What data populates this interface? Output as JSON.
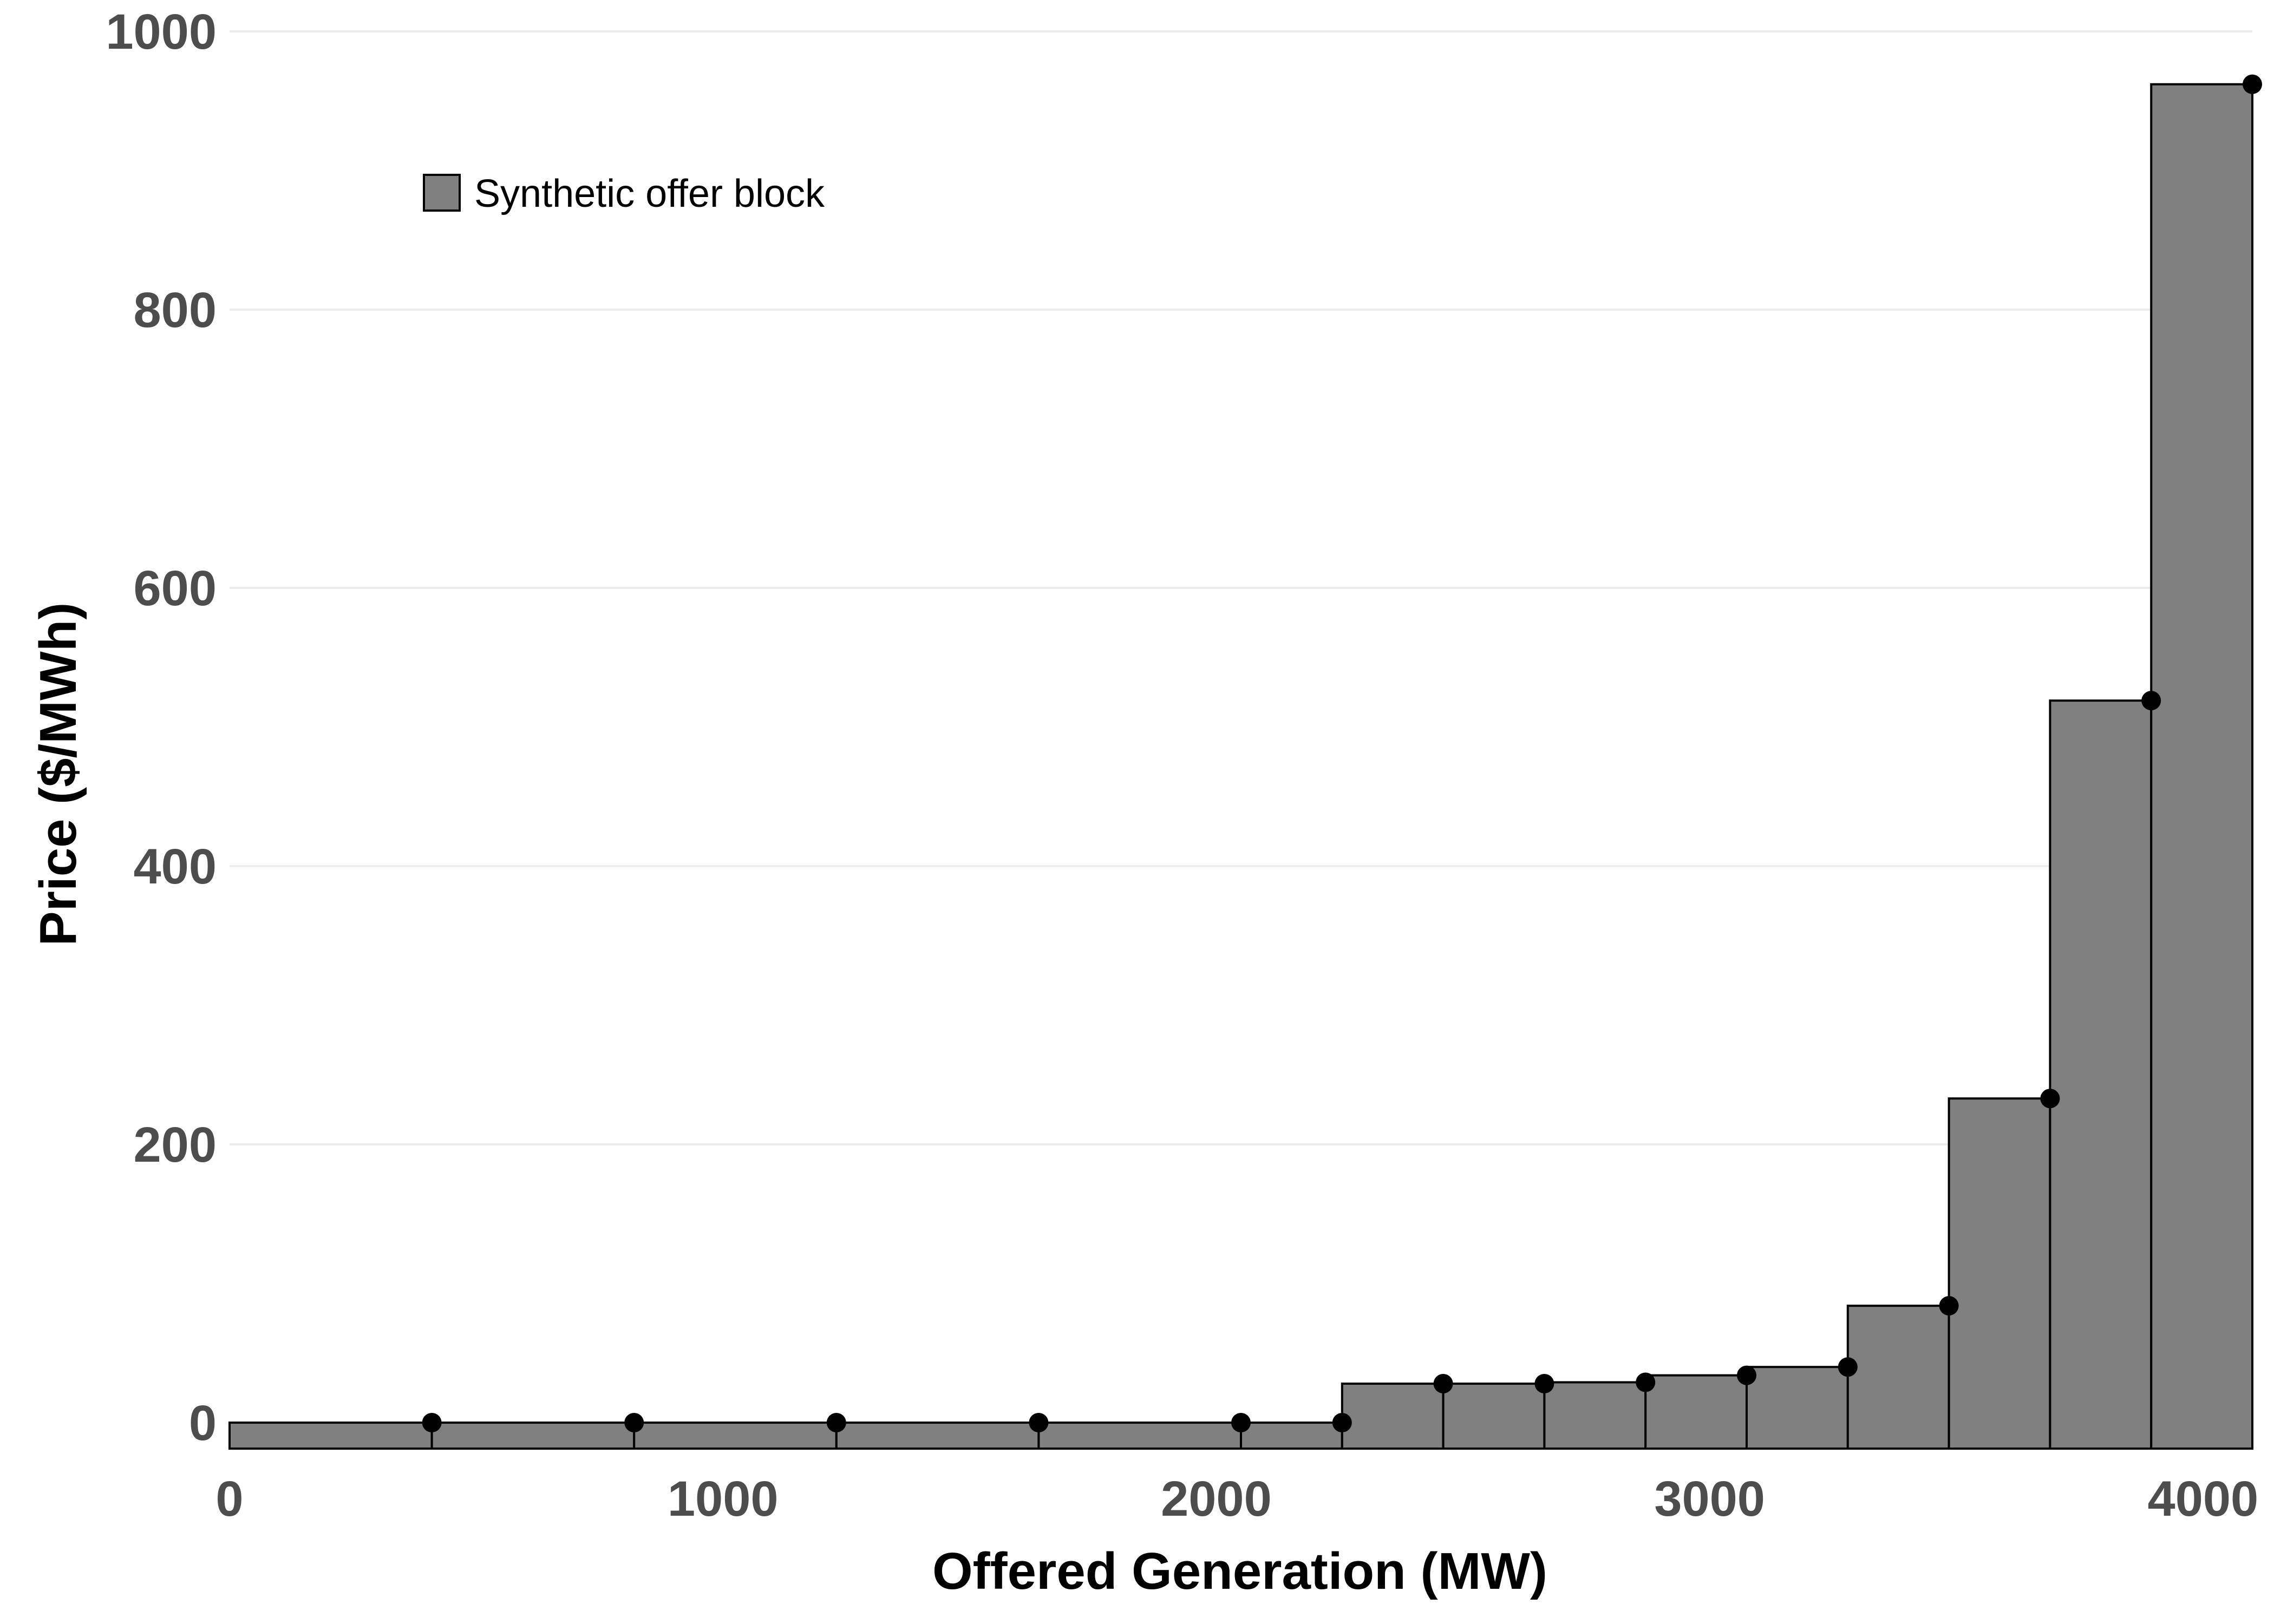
{
  "chart_data": {
    "type": "bar",
    "subtype": "step-offer-curve",
    "title": "",
    "xlabel": "Offered Generation (MW)",
    "ylabel": "Price ($/MWh)",
    "xlim": [
      0,
      4100
    ],
    "ylim": [
      0,
      1000
    ],
    "x_ticks": [
      0,
      1000,
      2000,
      3000,
      4000
    ],
    "y_ticks": [
      0,
      200,
      400,
      600,
      800,
      1000
    ],
    "grid": "horizontal",
    "legend": {
      "position": "top-left",
      "entries": [
        "Synthetic offer block"
      ]
    },
    "colors": {
      "bar_fill": "#808080",
      "bar_stroke": "#000000",
      "point": "#000000",
      "grid": "#ebebeb",
      "tick_text": "#4d4d4d"
    },
    "series": [
      {
        "name": "Synthetic offer block",
        "blocks": [
          {
            "x_start": 0,
            "x_end": 410,
            "price": 0
          },
          {
            "x_start": 410,
            "x_end": 820,
            "price": 0
          },
          {
            "x_start": 820,
            "x_end": 1230,
            "price": 0
          },
          {
            "x_start": 1230,
            "x_end": 1640,
            "price": 0
          },
          {
            "x_start": 1640,
            "x_end": 2050,
            "price": 0
          },
          {
            "x_start": 2050,
            "x_end": 2255,
            "price": 0
          },
          {
            "x_start": 2255,
            "x_end": 2460,
            "price": 28
          },
          {
            "x_start": 2460,
            "x_end": 2665,
            "price": 28
          },
          {
            "x_start": 2665,
            "x_end": 2870,
            "price": 29
          },
          {
            "x_start": 2870,
            "x_end": 3075,
            "price": 34
          },
          {
            "x_start": 3075,
            "x_end": 3280,
            "price": 40
          },
          {
            "x_start": 3280,
            "x_end": 3485,
            "price": 84
          },
          {
            "x_start": 3485,
            "x_end": 3690,
            "price": 233
          },
          {
            "x_start": 3690,
            "x_end": 3895,
            "price": 519
          },
          {
            "x_start": 3895,
            "x_end": 4100,
            "price": 962
          }
        ]
      }
    ]
  }
}
